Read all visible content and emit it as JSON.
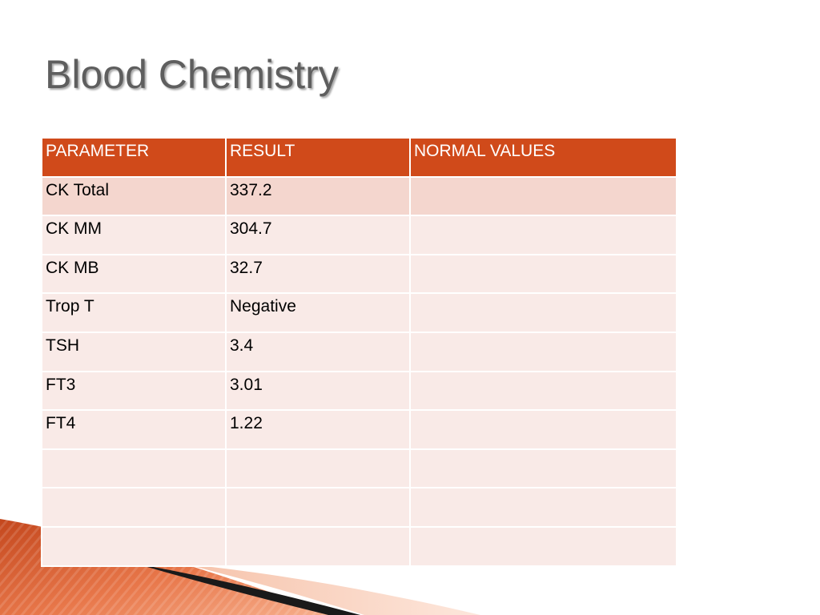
{
  "title": "Blood Chemistry",
  "colors": {
    "header_bg": "#d04a1a",
    "row_odd": "#f4d6ce",
    "row_even": "#f9eae7",
    "title_text": "#5e5e5e"
  },
  "table": {
    "headers": [
      "PARAMETER",
      "RESULT",
      "NORMAL VALUES"
    ],
    "rows": [
      [
        "CK Total",
        "337.2",
        ""
      ],
      [
        "CK MM",
        "304.7",
        ""
      ],
      [
        "CK MB",
        "32.7",
        ""
      ],
      [
        "Trop T",
        "Negative",
        ""
      ],
      [
        "TSH",
        "3.4",
        ""
      ],
      [
        "FT3",
        "3.01",
        ""
      ],
      [
        "FT4",
        "1.22",
        ""
      ],
      [
        "",
        "",
        ""
      ],
      [
        "",
        "",
        ""
      ],
      [
        "",
        "",
        ""
      ]
    ]
  }
}
